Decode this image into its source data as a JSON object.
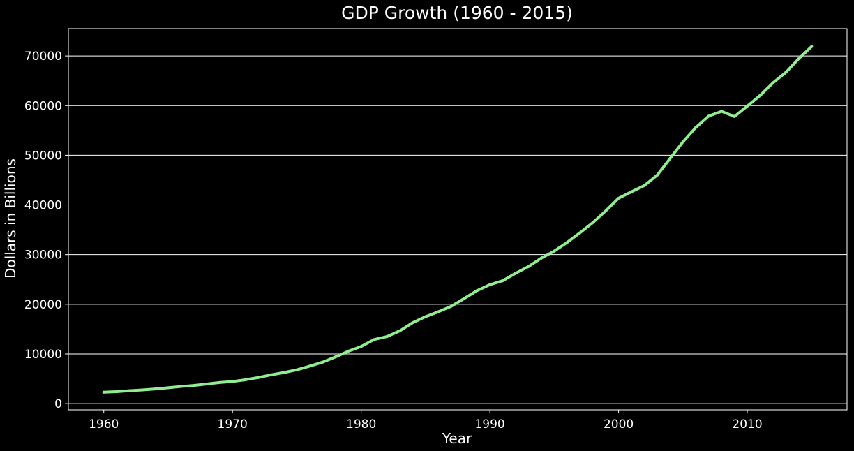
{
  "chart_data": {
    "type": "line",
    "title": "GDP Growth (1960 - 2015)",
    "xlabel": "Year",
    "ylabel": "Dollars in Billions",
    "xlim": [
      1957.25,
      2017.75
    ],
    "ylim": [
      -1250,
      75500
    ],
    "xticks": [
      1960,
      1970,
      1980,
      1990,
      2000,
      2010
    ],
    "yticks": [
      0,
      10000,
      20000,
      30000,
      40000,
      50000,
      60000,
      70000
    ],
    "grid": "horizontal",
    "background_color": "#000000",
    "text_color": "#ffffff",
    "grid_color": "#ffffff",
    "series": [
      {
        "color": "#90ee90",
        "x": [
          1960,
          1961,
          1962,
          1963,
          1964,
          1965,
          1966,
          1967,
          1968,
          1969,
          1970,
          1971,
          1972,
          1973,
          1974,
          1975,
          1976,
          1977,
          1978,
          1979,
          1980,
          1981,
          1982,
          1983,
          1984,
          1985,
          1986,
          1987,
          1988,
          1989,
          1990,
          1991,
          1992,
          1993,
          1994,
          1995,
          1996,
          1997,
          1998,
          1999,
          2000,
          2001,
          2002,
          2003,
          2004,
          2005,
          2006,
          2007,
          2008,
          2009,
          2010,
          2011,
          2012,
          2013,
          2014,
          2015
        ],
        "y": [
          2300,
          2400,
          2600,
          2750,
          2950,
          3200,
          3450,
          3650,
          3950,
          4250,
          4450,
          4800,
          5250,
          5800,
          6250,
          6800,
          7550,
          8350,
          9400,
          10550,
          11500,
          12900,
          13500,
          14650,
          16300,
          17500,
          18500,
          19600,
          21150,
          22750,
          23950,
          24750,
          26250,
          27600,
          29300,
          30700,
          32450,
          34400,
          36450,
          38800,
          41350,
          42650,
          43900,
          46000,
          49350,
          52700,
          55600,
          57900,
          58850,
          57800,
          59900,
          62050,
          64600,
          66700,
          69450,
          71900
        ]
      }
    ]
  }
}
